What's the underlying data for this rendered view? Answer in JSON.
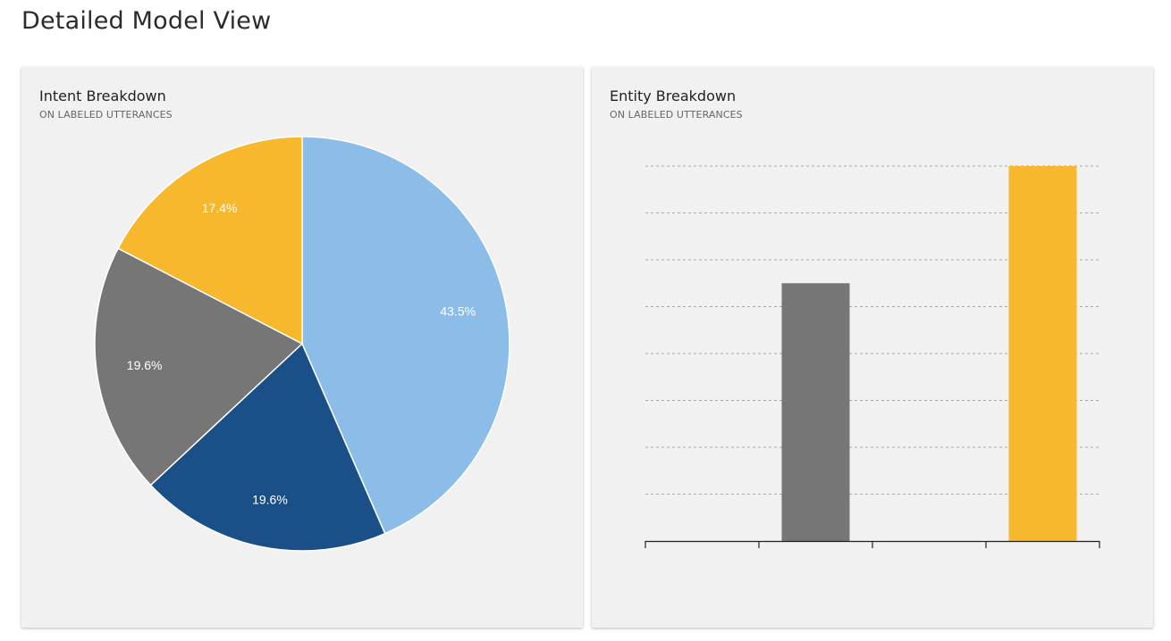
{
  "page": {
    "title": "Detailed Model View"
  },
  "intent_card": {
    "title": "Intent Breakdown",
    "subtitle": "ON LABELED UTTERANCES"
  },
  "entity_card": {
    "title": "Entity Breakdown",
    "subtitle": "ON LABELED UTTERANCES"
  },
  "chart_data": [
    {
      "type": "pie",
      "values": [
        43.5,
        19.6,
        19.6,
        17.4
      ],
      "labels": [
        "43.5%",
        "19.6%",
        "19.6%",
        "17.4%"
      ],
      "colors": [
        "#8bbde8",
        "#1b4f88",
        "#767676",
        "#f7b82e"
      ]
    },
    {
      "type": "bar",
      "categories": [
        "",
        "",
        "",
        ""
      ],
      "values": [
        0,
        5.5,
        0,
        8
      ],
      "colors": [
        "#767676",
        "#767676",
        "#f7b82e",
        "#f7b82e"
      ],
      "ylim": [
        0,
        8
      ],
      "grid": true
    }
  ]
}
